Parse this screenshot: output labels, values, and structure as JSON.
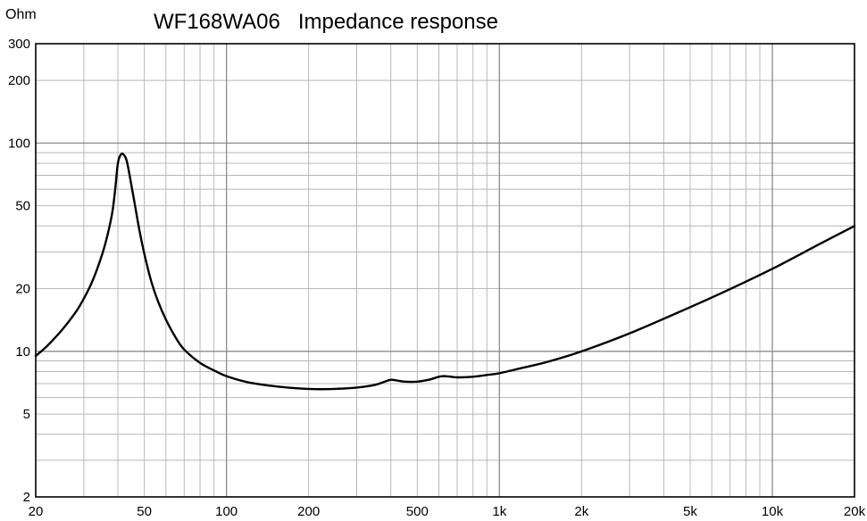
{
  "chart_data": {
    "type": "line",
    "title": "WF168WA06   Impedance response",
    "ylabel": "Ohm",
    "xlabel": "",
    "x_scale": "log",
    "y_scale": "log",
    "xlim": [
      20,
      20000
    ],
    "ylim": [
      2,
      300
    ],
    "grid": true,
    "x_tick_values": [
      20,
      50,
      100,
      200,
      500,
      1000,
      2000,
      5000,
      10000,
      20000
    ],
    "x_tick_labels": [
      "20",
      "50",
      "100",
      "200",
      "500",
      "1k",
      "2k",
      "5k",
      "10k",
      "20k"
    ],
    "y_tick_values": [
      2,
      5,
      10,
      20,
      50,
      100,
      200,
      300
    ],
    "y_tick_labels": [
      "2",
      "5",
      "10",
      "20",
      "50",
      "100",
      "200",
      "300"
    ],
    "series": [
      {
        "x": [
          20,
          22,
          25,
          28,
          30,
          32,
          34,
          36,
          38,
          39,
          40,
          41,
          42,
          43,
          44,
          46,
          48,
          50,
          53,
          56,
          60,
          65,
          70,
          80,
          90,
          100,
          120,
          150,
          180,
          200,
          220,
          250,
          300,
          350,
          380,
          400,
          420,
          450,
          500,
          550,
          600,
          620,
          650,
          700,
          800,
          900,
          1000,
          1200,
          1500,
          2000,
          3000,
          5000,
          7000,
          10000,
          15000,
          20000
        ],
        "y": [
          9.5,
          10.6,
          12.7,
          15.4,
          17.9,
          21.2,
          26,
          33,
          45,
          58,
          80,
          88,
          88,
          83,
          72,
          52,
          38,
          29.4,
          21.7,
          17.5,
          14.2,
          11.7,
          10.2,
          8.8,
          8.1,
          7.6,
          7.1,
          6.8,
          6.65,
          6.6,
          6.58,
          6.6,
          6.7,
          6.9,
          7.15,
          7.3,
          7.25,
          7.15,
          7.15,
          7.3,
          7.55,
          7.6,
          7.58,
          7.5,
          7.55,
          7.7,
          7.85,
          8.3,
          8.9,
          10,
          12.2,
          16.3,
          19.9,
          24.9,
          32.9,
          40
        ]
      }
    ]
  }
}
